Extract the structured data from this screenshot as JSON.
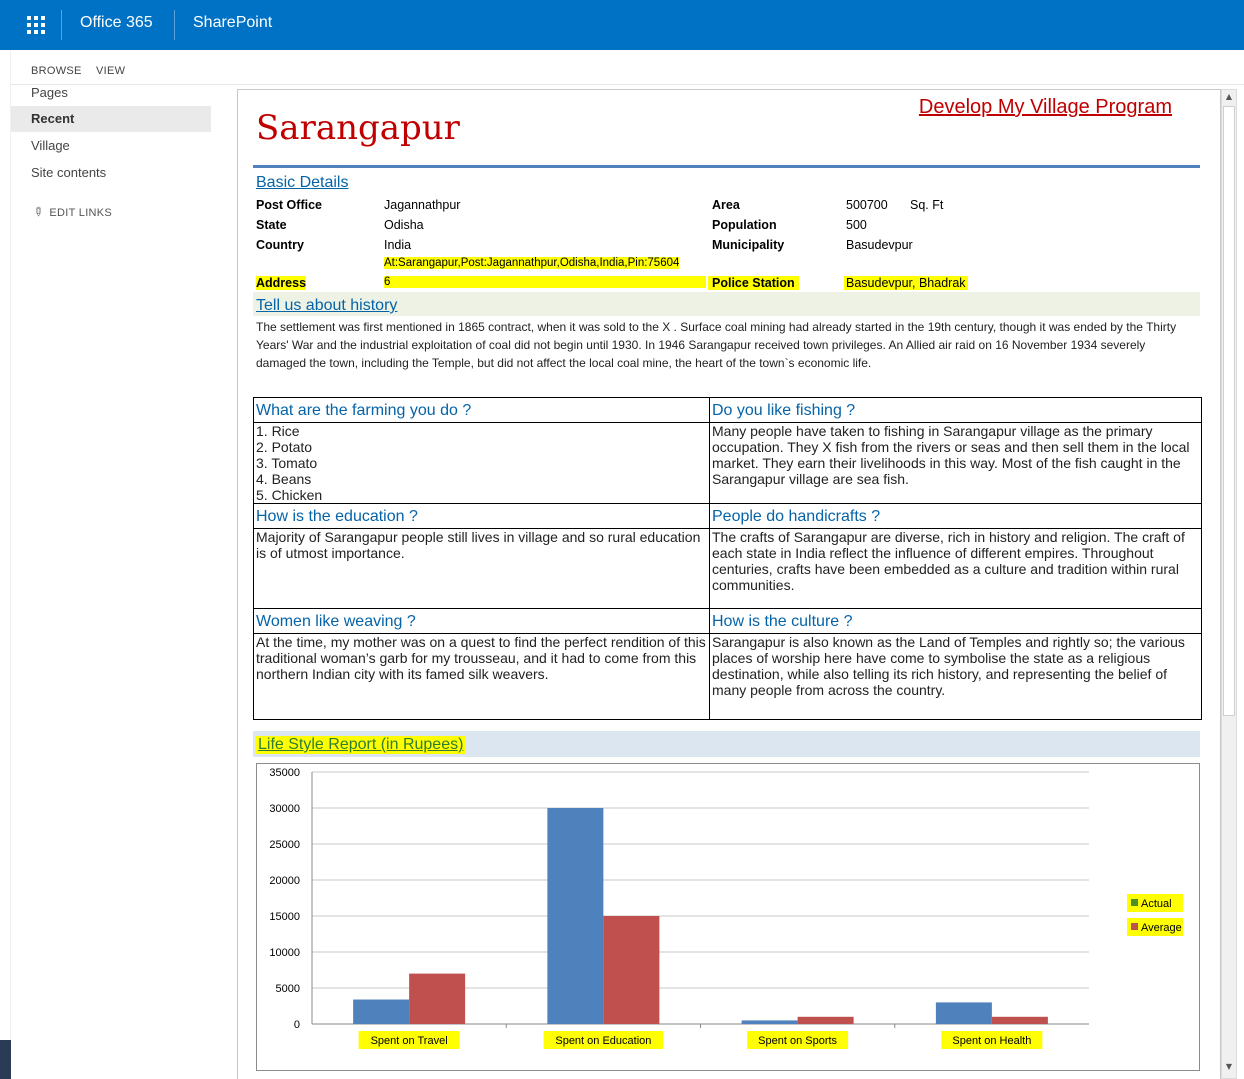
{
  "suitebar": {
    "brand": "Office 365",
    "product": "SharePoint"
  },
  "ribbon": {
    "tabs": [
      "BROWSE",
      "VIEW"
    ]
  },
  "quicklaunch": {
    "items": [
      {
        "label": "Pages",
        "selected": false
      },
      {
        "label": "Recent",
        "selected": true
      },
      {
        "label": "Village",
        "selected": false
      },
      {
        "label": "Site contents",
        "selected": false
      }
    ],
    "edit_links": "EDIT LINKS"
  },
  "page": {
    "title": "Sarangapur",
    "program_link": "Develop My Village Program"
  },
  "basic": {
    "heading": "Basic Details",
    "left": [
      {
        "label": "Post Office",
        "value": "Jagannathpur"
      },
      {
        "label": "State",
        "value": "Odisha"
      },
      {
        "label": "Country",
        "value": "India"
      },
      {
        "label": "Address",
        "value_line1": "At:Sarangapur,Post:Jagannathpur,Odisha,India,Pin:75604",
        "value_line2": "6"
      }
    ],
    "right": [
      {
        "label": "Area",
        "value": "500700",
        "unit": "Sq. Ft"
      },
      {
        "label": "Population",
        "value": "500"
      },
      {
        "label": "Municipality",
        "value": "Basudevpur"
      },
      {
        "label": "Police Station",
        "value": "Basudevpur, Bhadrak"
      }
    ]
  },
  "history": {
    "heading": "Tell us about history",
    "text": "The settlement was first mentioned in 1865 contract, when it was sold to the X . Surface coal mining had already started in the 19th century, though it was ended by the Thirty Years' War and the industrial exploitation of coal did not begin until 1930. In 1946 Sarangapur received town privileges. An Allied air raid on 16 November 1934 severely damaged the town, including the Temple, but did not affect the local coal mine, the heart of the town`s economic life."
  },
  "qa": {
    "farming": {
      "q": "What are the farming you do ?",
      "items": [
        "1. Rice",
        "2. Potato",
        "3. Tomato",
        "4. Beans",
        "5. Chicken"
      ]
    },
    "fishing": {
      "q": "Do you like fishing ?",
      "a": "Many people have taken to fishing in Sarangapur village as the primary occupation. They X fish from the rivers or seas and then sell them in the local market. They earn their livelihoods in this way. Most of the fish caught in the Sarangapur village are sea fish."
    },
    "education": {
      "q": "How is the education ?",
      "a": "Majority of Sarangapur people still lives in village and so rural education is of utmost importance."
    },
    "handicrafts": {
      "q": "People do handicrafts ?",
      "a": "The crafts of Sarangapur are diverse, rich in history and religion. The craft of each state in India reflect the influence of different empires. Throughout centuries, crafts have been embedded as a culture and tradition within rural communities."
    },
    "weaving": {
      "q": "Women like weaving ?",
      "a": "At the time, my mother was on a quest to find the perfect rendition of this traditional woman’s garb for my trousseau, and it had to come from this northern Indian city with its famed silk weavers."
    },
    "culture": {
      "q": "How is the culture ?",
      "a": "Sarangapur is also known as the Land of Temples and rightly so; the various places of worship here have come to symbolise the state as a religious destination, while also telling its rich history, and representing the belief of many people from across the country."
    }
  },
  "chart_heading": "Life Style Report (in Rupees)",
  "chart_data": {
    "type": "bar",
    "title": "",
    "categories": [
      "Spent on Travel",
      "Spent on Education",
      "Spent on Sports",
      "Spent on Health"
    ],
    "series": [
      {
        "name": "Actual",
        "values": [
          3400,
          30000,
          500,
          3000
        ],
        "color": "#4f81bd",
        "legend_marker_color": "#4e8f2a"
      },
      {
        "name": "Average",
        "values": [
          7000,
          15000,
          1000,
          1000
        ],
        "color": "#c0504d",
        "legend_marker_color": "#c0504d"
      }
    ],
    "ylim": [
      0,
      35000
    ],
    "yticks": [
      0,
      5000,
      10000,
      15000,
      20000,
      25000,
      30000,
      35000
    ],
    "grid": true,
    "legend": "right"
  },
  "colors": {
    "suitebar": "#0072c6",
    "title_red": "#c00000",
    "link_blue": "#0563a8",
    "highlight": "#ffff00"
  }
}
